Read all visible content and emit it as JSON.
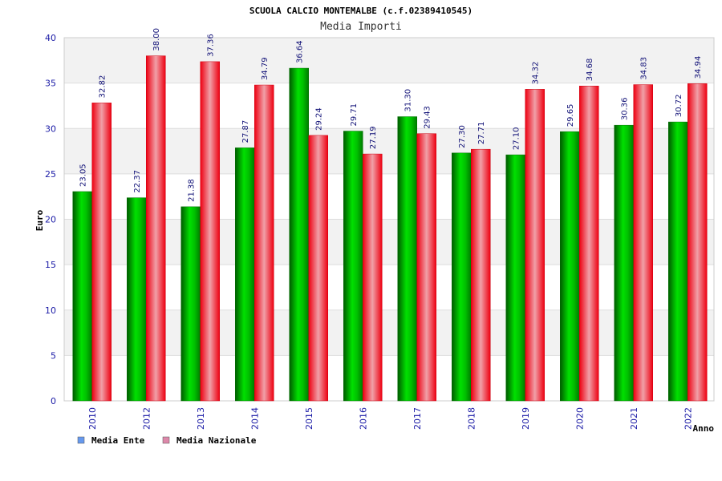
{
  "chart_data": {
    "type": "bar",
    "title": "SCUOLA CALCIO MONTEMALBE (c.f.02389410545)",
    "subtitle": "Media Importi",
    "xlabel": "Anno",
    "ylabel": "Euro",
    "ylim": [
      0,
      40
    ],
    "yticks": [
      0,
      5,
      10,
      15,
      20,
      25,
      30,
      35,
      40
    ],
    "grid": true,
    "legend_position": "bottom-left",
    "categories": [
      "2010",
      "2012",
      "2013",
      "2014",
      "2015",
      "2016",
      "2017",
      "2018",
      "2019",
      "2020",
      "2021",
      "2022"
    ],
    "series": [
      {
        "name": "Media Ente",
        "legend_color": "#6699ee",
        "bar_color": "#00bb00",
        "values": [
          23.05,
          22.37,
          21.38,
          27.87,
          36.64,
          29.71,
          31.3,
          27.3,
          27.1,
          29.65,
          30.36,
          30.72
        ],
        "labels": [
          "23.05",
          "22.37",
          "21.38",
          "27.87",
          "36.64",
          "29.71",
          "31.30",
          "27.30",
          "27.10",
          "29.65",
          "30.36",
          "30.72"
        ]
      },
      {
        "name": "Media Nazionale",
        "legend_color": "#dd88aa",
        "bar_color": "#ee1122",
        "values": [
          32.82,
          38.0,
          37.36,
          34.79,
          29.24,
          27.19,
          29.43,
          27.71,
          34.32,
          34.68,
          34.83,
          34.94
        ],
        "labels": [
          "32.82",
          "38.00",
          "37.36",
          "34.79",
          "29.24",
          "27.19",
          "29.43",
          "27.71",
          "34.32",
          "34.68",
          "34.83",
          "34.94"
        ]
      }
    ]
  }
}
